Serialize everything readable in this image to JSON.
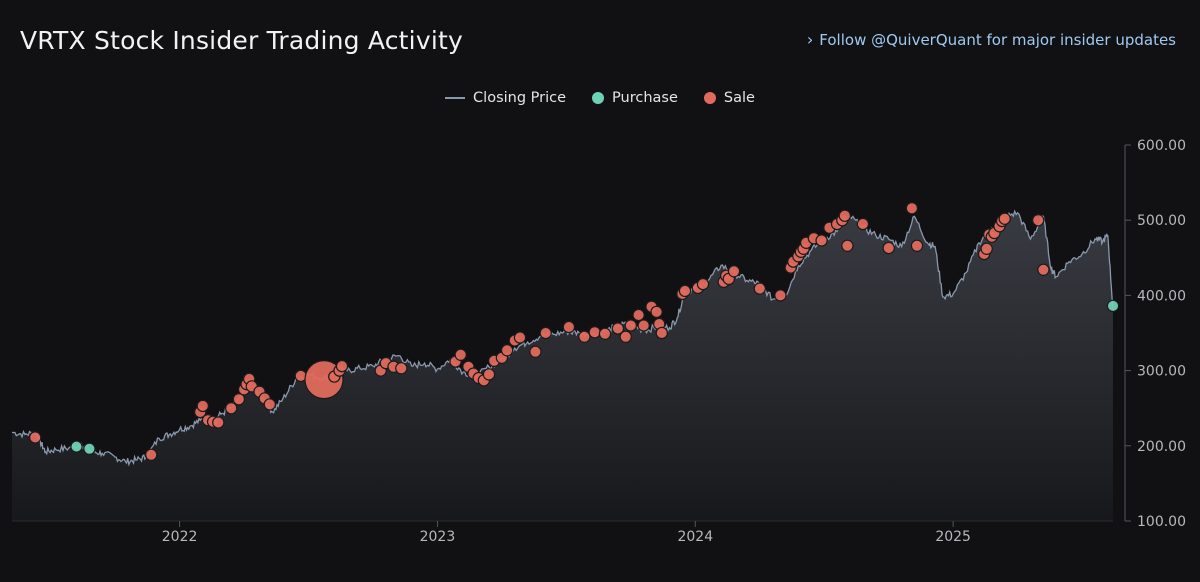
{
  "header": {
    "title": "VRTX Stock Insider Trading Activity",
    "follow_link": "Follow @QuiverQuant for major insider updates"
  },
  "colors": {
    "price_line": "#8a98ad",
    "purchase": "#6fd1b4",
    "sale": "#e06a5c",
    "background": "#111113"
  },
  "chart_data": {
    "type": "line",
    "title": "VRTX Stock Insider Trading Activity",
    "legend": [
      "Closing Price",
      "Purchase",
      "Sale"
    ],
    "legend_position": "top-center",
    "xlabel": "",
    "ylabel": "",
    "x_ticks": [
      {
        "t": 2022.0,
        "label": "2022"
      },
      {
        "t": 2023.0,
        "label": "2023"
      },
      {
        "t": 2024.0,
        "label": "2024"
      },
      {
        "t": 2025.0,
        "label": "2025"
      }
    ],
    "y_ticks": [
      "100.00",
      "200.00",
      "300.00",
      "400.00",
      "500.00",
      "600.00"
    ],
    "xlim": [
      2021.35,
      2025.62
    ],
    "ylim": [
      100,
      600
    ],
    "y_axis_side": "right",
    "closing_price": [
      [
        2021.35,
        218
      ],
      [
        2021.4,
        215
      ],
      [
        2021.44,
        218
      ],
      [
        2021.46,
        205
      ],
      [
        2021.48,
        192
      ],
      [
        2021.52,
        195
      ],
      [
        2021.57,
        197
      ],
      [
        2021.62,
        202
      ],
      [
        2021.66,
        192
      ],
      [
        2021.7,
        190
      ],
      [
        2021.75,
        185
      ],
      [
        2021.79,
        179
      ],
      [
        2021.83,
        181
      ],
      [
        2021.87,
        185
      ],
      [
        2021.92,
        210
      ],
      [
        2021.96,
        215
      ],
      [
        2022.0,
        222
      ],
      [
        2022.04,
        226
      ],
      [
        2022.08,
        234
      ],
      [
        2022.12,
        232
      ],
      [
        2022.16,
        242
      ],
      [
        2022.2,
        250
      ],
      [
        2022.24,
        265
      ],
      [
        2022.27,
        285
      ],
      [
        2022.3,
        272
      ],
      [
        2022.33,
        262
      ],
      [
        2022.36,
        245
      ],
      [
        2022.4,
        262
      ],
      [
        2022.45,
        288
      ],
      [
        2022.5,
        295
      ],
      [
        2022.55,
        290
      ],
      [
        2022.6,
        292
      ],
      [
        2022.65,
        300
      ],
      [
        2022.7,
        303
      ],
      [
        2022.75,
        306
      ],
      [
        2022.8,
        315
      ],
      [
        2022.85,
        320
      ],
      [
        2022.9,
        306
      ],
      [
        2022.95,
        310
      ],
      [
        2023.0,
        302
      ],
      [
        2023.05,
        315
      ],
      [
        2023.1,
        298
      ],
      [
        2023.15,
        292
      ],
      [
        2023.2,
        305
      ],
      [
        2023.25,
        315
      ],
      [
        2023.3,
        330
      ],
      [
        2023.35,
        338
      ],
      [
        2023.4,
        346
      ],
      [
        2023.45,
        348
      ],
      [
        2023.5,
        352
      ],
      [
        2023.55,
        350
      ],
      [
        2023.6,
        348
      ],
      [
        2023.65,
        352
      ],
      [
        2023.7,
        360
      ],
      [
        2023.75,
        362
      ],
      [
        2023.8,
        353
      ],
      [
        2023.85,
        358
      ],
      [
        2023.9,
        357
      ],
      [
        2023.93,
        370
      ],
      [
        2023.96,
        405
      ],
      [
        2024.0,
        410
      ],
      [
        2024.05,
        420
      ],
      [
        2024.1,
        440
      ],
      [
        2024.15,
        430
      ],
      [
        2024.2,
        420
      ],
      [
        2024.25,
        415
      ],
      [
        2024.3,
        395
      ],
      [
        2024.35,
        400
      ],
      [
        2024.4,
        440
      ],
      [
        2024.45,
        460
      ],
      [
        2024.5,
        475
      ],
      [
        2024.55,
        485
      ],
      [
        2024.6,
        505
      ],
      [
        2024.65,
        490
      ],
      [
        2024.7,
        480
      ],
      [
        2024.75,
        475
      ],
      [
        2024.8,
        465
      ],
      [
        2024.85,
        505
      ],
      [
        2024.9,
        470
      ],
      [
        2024.93,
        465
      ],
      [
        2024.96,
        398
      ],
      [
        2025.0,
        402
      ],
      [
        2025.05,
        430
      ],
      [
        2025.1,
        470
      ],
      [
        2025.15,
        490
      ],
      [
        2025.2,
        505
      ],
      [
        2025.25,
        510
      ],
      [
        2025.3,
        475
      ],
      [
        2025.35,
        505
      ],
      [
        2025.38,
        435
      ],
      [
        2025.4,
        425
      ],
      [
        2025.45,
        445
      ],
      [
        2025.5,
        455
      ],
      [
        2025.55,
        475
      ],
      [
        2025.58,
        472
      ],
      [
        2025.6,
        480
      ],
      [
        2025.62,
        380
      ]
    ],
    "purchases": [
      {
        "t": 2021.6,
        "price": 199,
        "size": 1
      },
      {
        "t": 2021.65,
        "price": 196,
        "size": 1
      },
      {
        "t": 2025.62,
        "price": 386,
        "size": 1
      }
    ],
    "sales": [
      {
        "t": 2021.44,
        "price": 211,
        "size": 1
      },
      {
        "t": 2021.89,
        "price": 188,
        "size": 1
      },
      {
        "t": 2022.08,
        "price": 245,
        "size": 1
      },
      {
        "t": 2022.09,
        "price": 253,
        "size": 1
      },
      {
        "t": 2022.11,
        "price": 234,
        "size": 1
      },
      {
        "t": 2022.13,
        "price": 232,
        "size": 1
      },
      {
        "t": 2022.15,
        "price": 231,
        "size": 1
      },
      {
        "t": 2022.2,
        "price": 250,
        "size": 1
      },
      {
        "t": 2022.23,
        "price": 262,
        "size": 1
      },
      {
        "t": 2022.25,
        "price": 275,
        "size": 1
      },
      {
        "t": 2022.26,
        "price": 282,
        "size": 1
      },
      {
        "t": 2022.27,
        "price": 289,
        "size": 1
      },
      {
        "t": 2022.28,
        "price": 279,
        "size": 1
      },
      {
        "t": 2022.31,
        "price": 272,
        "size": 1
      },
      {
        "t": 2022.33,
        "price": 263,
        "size": 1
      },
      {
        "t": 2022.35,
        "price": 255,
        "size": 1
      },
      {
        "t": 2022.47,
        "price": 293,
        "size": 1
      },
      {
        "t": 2022.56,
        "price": 288,
        "size": 3.4
      },
      {
        "t": 2022.6,
        "price": 292,
        "size": 1
      },
      {
        "t": 2022.62,
        "price": 300,
        "size": 1
      },
      {
        "t": 2022.63,
        "price": 306,
        "size": 1
      },
      {
        "t": 2022.78,
        "price": 300,
        "size": 1
      },
      {
        "t": 2022.8,
        "price": 310,
        "size": 1
      },
      {
        "t": 2022.83,
        "price": 305,
        "size": 1
      },
      {
        "t": 2022.86,
        "price": 303,
        "size": 1
      },
      {
        "t": 2023.07,
        "price": 312,
        "size": 1
      },
      {
        "t": 2023.09,
        "price": 321,
        "size": 1
      },
      {
        "t": 2023.12,
        "price": 305,
        "size": 1
      },
      {
        "t": 2023.14,
        "price": 296,
        "size": 1
      },
      {
        "t": 2023.16,
        "price": 290,
        "size": 1
      },
      {
        "t": 2023.18,
        "price": 287,
        "size": 1
      },
      {
        "t": 2023.2,
        "price": 295,
        "size": 1
      },
      {
        "t": 2023.22,
        "price": 313,
        "size": 1
      },
      {
        "t": 2023.25,
        "price": 317,
        "size": 1
      },
      {
        "t": 2023.27,
        "price": 327,
        "size": 1
      },
      {
        "t": 2023.3,
        "price": 340,
        "size": 1
      },
      {
        "t": 2023.32,
        "price": 344,
        "size": 1
      },
      {
        "t": 2023.38,
        "price": 325,
        "size": 1
      },
      {
        "t": 2023.42,
        "price": 350,
        "size": 1
      },
      {
        "t": 2023.51,
        "price": 358,
        "size": 1
      },
      {
        "t": 2023.57,
        "price": 345,
        "size": 1
      },
      {
        "t": 2023.61,
        "price": 351,
        "size": 1
      },
      {
        "t": 2023.65,
        "price": 349,
        "size": 1
      },
      {
        "t": 2023.7,
        "price": 356,
        "size": 1
      },
      {
        "t": 2023.73,
        "price": 345,
        "size": 1
      },
      {
        "t": 2023.75,
        "price": 360,
        "size": 1
      },
      {
        "t": 2023.78,
        "price": 374,
        "size": 1
      },
      {
        "t": 2023.8,
        "price": 360,
        "size": 1
      },
      {
        "t": 2023.83,
        "price": 385,
        "size": 1
      },
      {
        "t": 2023.85,
        "price": 378,
        "size": 1
      },
      {
        "t": 2023.86,
        "price": 362,
        "size": 1
      },
      {
        "t": 2023.87,
        "price": 350,
        "size": 1
      },
      {
        "t": 2023.95,
        "price": 402,
        "size": 1
      },
      {
        "t": 2023.96,
        "price": 406,
        "size": 1
      },
      {
        "t": 2024.01,
        "price": 410,
        "size": 1
      },
      {
        "t": 2024.03,
        "price": 415,
        "size": 1
      },
      {
        "t": 2024.11,
        "price": 418,
        "size": 1
      },
      {
        "t": 2024.12,
        "price": 426,
        "size": 1
      },
      {
        "t": 2024.13,
        "price": 422,
        "size": 1
      },
      {
        "t": 2024.15,
        "price": 432,
        "size": 1
      },
      {
        "t": 2024.25,
        "price": 409,
        "size": 1
      },
      {
        "t": 2024.33,
        "price": 400,
        "size": 1
      },
      {
        "t": 2024.37,
        "price": 437,
        "size": 1
      },
      {
        "t": 2024.38,
        "price": 445,
        "size": 1
      },
      {
        "t": 2024.4,
        "price": 452,
        "size": 1
      },
      {
        "t": 2024.41,
        "price": 458,
        "size": 1
      },
      {
        "t": 2024.42,
        "price": 462,
        "size": 1
      },
      {
        "t": 2024.43,
        "price": 470,
        "size": 1
      },
      {
        "t": 2024.46,
        "price": 476,
        "size": 1
      },
      {
        "t": 2024.49,
        "price": 473,
        "size": 1
      },
      {
        "t": 2024.52,
        "price": 490,
        "size": 1
      },
      {
        "t": 2024.55,
        "price": 495,
        "size": 1
      },
      {
        "t": 2024.57,
        "price": 500,
        "size": 1
      },
      {
        "t": 2024.58,
        "price": 506,
        "size": 1
      },
      {
        "t": 2024.59,
        "price": 466,
        "size": 1
      },
      {
        "t": 2024.65,
        "price": 495,
        "size": 1
      },
      {
        "t": 2024.75,
        "price": 463,
        "size": 1
      },
      {
        "t": 2024.84,
        "price": 516,
        "size": 1
      },
      {
        "t": 2024.86,
        "price": 466,
        "size": 1
      },
      {
        "t": 2025.12,
        "price": 455,
        "size": 1
      },
      {
        "t": 2025.13,
        "price": 462,
        "size": 1
      },
      {
        "t": 2025.14,
        "price": 481,
        "size": 1
      },
      {
        "t": 2025.15,
        "price": 478,
        "size": 1
      },
      {
        "t": 2025.16,
        "price": 483,
        "size": 1
      },
      {
        "t": 2025.18,
        "price": 492,
        "size": 1
      },
      {
        "t": 2025.19,
        "price": 499,
        "size": 1
      },
      {
        "t": 2025.2,
        "price": 502,
        "size": 1
      },
      {
        "t": 2025.33,
        "price": 500,
        "size": 1
      },
      {
        "t": 2025.35,
        "price": 434,
        "size": 1
      }
    ]
  }
}
